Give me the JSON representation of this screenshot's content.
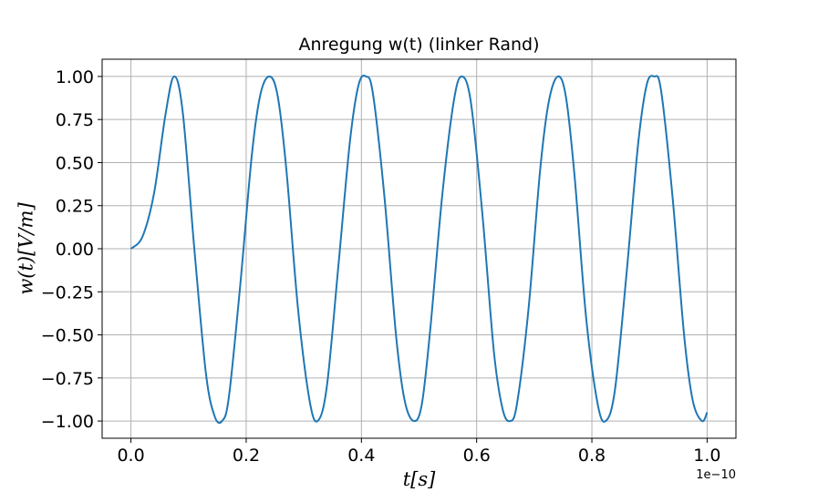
{
  "chart_data": {
    "type": "line",
    "title": "Anregung w(t) (linker Rand)",
    "xlabel": "t[s]",
    "ylabel": "w(t)[V/m]",
    "x_offset_label": "1e−10",
    "xlim": [
      -0.05,
      1.05
    ],
    "ylim": [
      -1.1,
      1.1
    ],
    "grid": true,
    "x_ticks": [
      0.0,
      0.2,
      0.4,
      0.6,
      0.8,
      1.0
    ],
    "x_tick_labels": [
      "0.0",
      "0.2",
      "0.4",
      "0.6",
      "0.8",
      "1.0"
    ],
    "y_ticks": [
      1.0,
      0.75,
      0.5,
      0.25,
      0.0,
      -0.25,
      -0.5,
      -0.75,
      -1.0
    ],
    "y_tick_labels": [
      "1.00",
      "0.75",
      "0.50",
      "0.25",
      "0.00",
      "−0.25",
      "−0.50",
      "−0.75",
      "−1.00"
    ],
    "colors": {
      "series": "#1f77b4",
      "grid": "#b0b0b0"
    },
    "series": [
      {
        "x": [
          0.0,
          0.02,
          0.04,
          0.06,
          0.075,
          0.09,
          0.11,
          0.13,
          0.145,
          0.158,
          0.17,
          0.19,
          0.21,
          0.225,
          0.241,
          0.255,
          0.27,
          0.29,
          0.31,
          0.324,
          0.34,
          0.36,
          0.38,
          0.395,
          0.408,
          0.42,
          0.44,
          0.46,
          0.475,
          0.491,
          0.505,
          0.52,
          0.54,
          0.56,
          0.574,
          0.59,
          0.61,
          0.63,
          0.645,
          0.658,
          0.67,
          0.69,
          0.71,
          0.725,
          0.741,
          0.755,
          0.77,
          0.79,
          0.81,
          0.824,
          0.84,
          0.86,
          0.88,
          0.895,
          0.908,
          0.92,
          0.94,
          0.96,
          0.975,
          0.991,
          1.0
        ],
        "y": [
          0.0,
          0.07,
          0.32,
          0.78,
          1.0,
          0.79,
          0.0,
          -0.72,
          -0.97,
          -1.0,
          -0.86,
          -0.2,
          0.55,
          0.9,
          1.0,
          0.88,
          0.45,
          -0.35,
          -0.88,
          -1.0,
          -0.8,
          -0.1,
          0.62,
          0.95,
          1.0,
          0.9,
          0.3,
          -0.5,
          -0.88,
          -1.0,
          -0.9,
          -0.45,
          0.3,
          0.85,
          1.0,
          0.85,
          0.2,
          -0.6,
          -0.93,
          -1.0,
          -0.9,
          -0.35,
          0.45,
          0.85,
          1.0,
          0.88,
          0.42,
          -0.4,
          -0.9,
          -1.0,
          -0.82,
          -0.15,
          0.6,
          0.95,
          1.0,
          0.92,
          0.3,
          -0.5,
          -0.88,
          -1.0,
          -0.95
        ]
      }
    ]
  }
}
